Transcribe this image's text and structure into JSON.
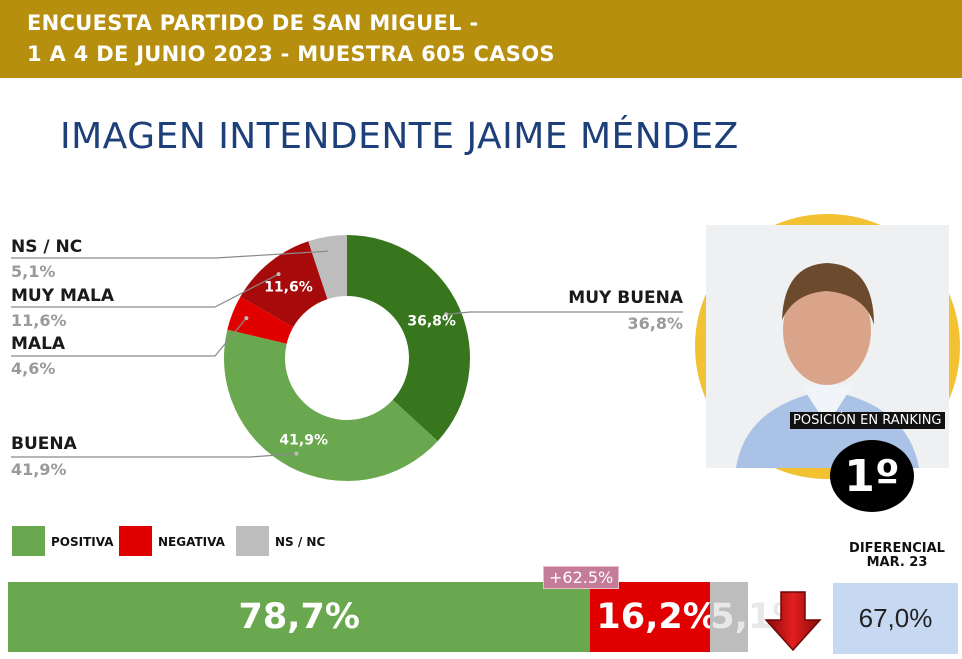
{
  "header": {
    "line1": "ENCUESTA PARTIDO DE SAN MIGUEL -",
    "line2": "1 A 4 DE JUNIO 2023 - MUESTRA 605 CASOS"
  },
  "title": "IMAGEN INTENDENTE  JAIME MÉNDEZ",
  "colors": {
    "header_bg": "#b78f0e",
    "muy_buena": "#38761d",
    "buena": "#6aa84f",
    "mala": "#e00000",
    "muy_mala": "#a60a0a",
    "ns_nc": "#bdbdbd",
    "title": "#1d3f7a",
    "ring": "#f2c233"
  },
  "chart_data": [
    {
      "type": "pie",
      "variant": "donut",
      "categories": [
        "MUY BUENA",
        "BUENA",
        "MALA",
        "MUY MALA",
        "NS / NC"
      ],
      "values": [
        36.8,
        41.9,
        4.6,
        11.6,
        5.1
      ],
      "value_labels": [
        "36,8%",
        "41,9%",
        "",
        "11,6%",
        ""
      ],
      "callouts": [
        {
          "label": "MUY BUENA",
          "value": "36,8%"
        },
        {
          "label": "BUENA",
          "value": "41,9%"
        },
        {
          "label": "MALA",
          "value": "4,6%"
        },
        {
          "label": "MUY MALA",
          "value": "11,6%"
        },
        {
          "label": "NS / NC",
          "value": "5,1%"
        }
      ]
    },
    {
      "type": "bar",
      "orientation": "horizontal",
      "stacked": true,
      "categories": [
        "POSITIVA",
        "NEGATIVA",
        "NS / NC"
      ],
      "values": [
        78.7,
        16.2,
        5.1
      ],
      "value_labels": [
        "78,7%",
        "16,2%",
        "5,1%"
      ],
      "legend": [
        "POSITIVA",
        "NEGATIVA",
        "NS / NC"
      ],
      "legend_position": "bottom-left"
    }
  ],
  "change_badge": "+62.5%",
  "ranking": {
    "label": "POSICIÓN EN RANKING",
    "value": "1º"
  },
  "differential": {
    "title_line1": "DIFERENCIAL",
    "title_line2": "MAR. 23",
    "value": "67,0%",
    "trend_icon": "arrow-down-icon"
  }
}
